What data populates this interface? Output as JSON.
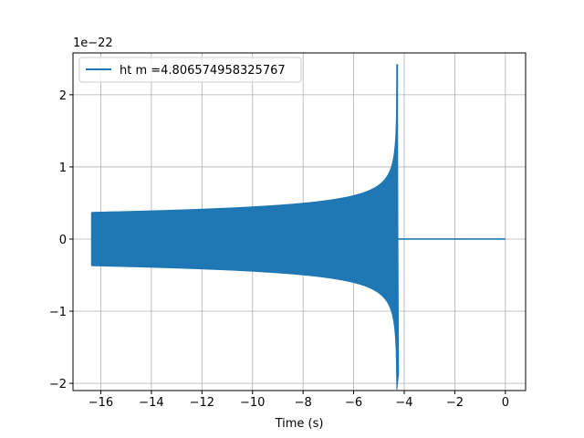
{
  "chart_data": {
    "type": "line",
    "xlabel": "Time (s)",
    "y_offset_label": "1e−22",
    "xlim": [
      -17.1,
      0.8
    ],
    "ylim": [
      -2.1,
      2.58
    ],
    "xticks": [
      -16,
      -14,
      -12,
      -10,
      -8,
      -6,
      -4,
      -2,
      0
    ],
    "yticks": [
      -2,
      -1,
      0,
      1,
      2
    ],
    "xtick_labels": [
      "−16",
      "−14",
      "−12",
      "−10",
      "−8",
      "−6",
      "−4",
      "−2",
      "0"
    ],
    "ytick_labels": [
      "−2",
      "−1",
      "0",
      "1",
      "2"
    ],
    "grid": true,
    "legend_position": "top-left",
    "series": [
      {
        "name": "ht m =4.806574958325767",
        "color": "#1f77b4",
        "signal": "chirp",
        "t_start": -16.35,
        "t_merger": -4.28,
        "t_end": 0.0,
        "initial_amplitude": 0.37,
        "peak_max": 2.42,
        "peak_min": -1.87,
        "post_merger_value": 0.0
      }
    ]
  }
}
